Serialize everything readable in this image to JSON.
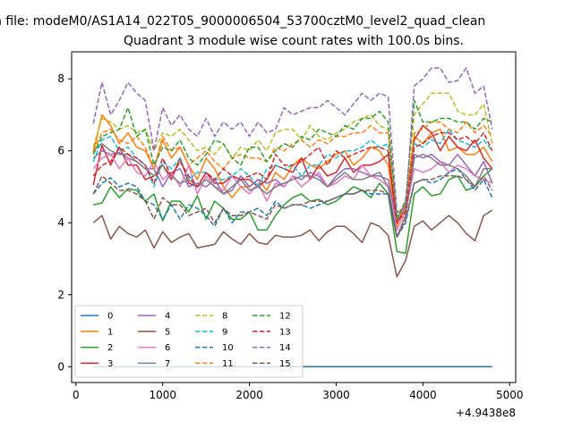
{
  "figure": {
    "suptitle": "n file: modeM0/AS1A14_022T05_9000006504_53700cztM0_level2_quad_clean",
    "x_offset_label": "+4.9438e8"
  },
  "chart_data": {
    "type": "line",
    "title": "Quadrant 3 module wise count rates with 100.0s bins.",
    "xlabel": "",
    "ylabel": "",
    "xlim": [
      -50,
      5070
    ],
    "ylim": [
      -0.44,
      8.75
    ],
    "xticks": [
      0,
      1000,
      2000,
      3000,
      4000,
      5000
    ],
    "yticks": [
      0,
      2,
      4,
      6,
      8
    ],
    "grid": false,
    "legend_position": "lower-left",
    "legend_columns": 4,
    "x": [
      200,
      300,
      400,
      500,
      600,
      700,
      800,
      900,
      1000,
      1100,
      1200,
      1300,
      1400,
      1500,
      1600,
      1700,
      1800,
      1900,
      2000,
      2100,
      2200,
      2300,
      2400,
      2500,
      2600,
      2700,
      2800,
      2900,
      3000,
      3100,
      3200,
      3300,
      3400,
      3500,
      3600,
      3700,
      3800,
      3900,
      4000,
      4100,
      4200,
      4300,
      4400,
      4500,
      4600,
      4700,
      4800
    ],
    "series": [
      {
        "name": "0",
        "color": "#1f77b4",
        "dash": "solid",
        "values": [
          0,
          0,
          0,
          0,
          0,
          0,
          0,
          0,
          0,
          0,
          0,
          0,
          0,
          0,
          0,
          0,
          0,
          0,
          0,
          0,
          0,
          0,
          0,
          0,
          0,
          0,
          0,
          0,
          0,
          0,
          0,
          0,
          0,
          0,
          0,
          0,
          0,
          0,
          0,
          0,
          0,
          0,
          0,
          0,
          0,
          0,
          0
        ]
      },
      {
        "name": "1",
        "color": "#ff7f0e",
        "dash": "solid",
        "values": [
          5.95,
          7.0,
          6.7,
          6.2,
          6.5,
          6.1,
          6.0,
          5.5,
          6.3,
          5.8,
          6.1,
          5.6,
          5.2,
          5.8,
          5.5,
          5.0,
          4.7,
          5.0,
          5.0,
          5.2,
          4.9,
          5.4,
          5.2,
          5.6,
          5.8,
          5.6,
          5.5,
          5.7,
          5.9,
          6.0,
          5.6,
          5.8,
          6.1,
          6.0,
          5.6,
          3.9,
          4.5,
          6.4,
          6.2,
          6.5,
          6.6,
          6.0,
          6.1,
          5.9,
          5.9,
          6.1,
          5.7
        ]
      },
      {
        "name": "2",
        "color": "#2ca02c",
        "dash": "solid",
        "values": [
          4.5,
          4.55,
          5.0,
          4.7,
          4.95,
          4.9,
          4.6,
          4.8,
          4.05,
          4.6,
          4.6,
          4.3,
          4.75,
          4.1,
          4.6,
          4.4,
          4.1,
          4.1,
          4.3,
          3.8,
          3.8,
          4.2,
          4.5,
          4.7,
          4.8,
          4.6,
          4.65,
          4.5,
          4.6,
          4.8,
          5.0,
          4.9,
          4.7,
          5.1,
          4.8,
          3.2,
          3.15,
          4.8,
          5.0,
          4.75,
          4.8,
          5.2,
          5.3,
          4.9,
          5.0,
          5.3,
          5.5
        ]
      },
      {
        "name": "3",
        "color": "#d62728",
        "dash": "solid",
        "values": [
          5.05,
          6.15,
          5.6,
          6.1,
          5.6,
          5.6,
          5.2,
          5.3,
          5.6,
          5.2,
          5.8,
          5.1,
          5.0,
          5.4,
          5.1,
          5.1,
          5.3,
          5.2,
          5.2,
          5.0,
          5.2,
          5.6,
          5.5,
          5.4,
          5.8,
          5.2,
          5.6,
          5.3,
          5.4,
          5.8,
          5.4,
          5.6,
          5.6,
          5.7,
          5.9,
          4.0,
          4.4,
          6.3,
          6.7,
          6.5,
          6.0,
          6.4,
          6.1,
          6.0,
          6.3,
          5.8,
          5.5
        ]
      },
      {
        "name": "4",
        "color": "#9467bd",
        "dash": "solid",
        "values": [
          5.8,
          6.0,
          5.9,
          5.95,
          5.8,
          5.7,
          5.5,
          5.5,
          5.0,
          5.4,
          5.5,
          5.0,
          5.1,
          5.0,
          5.2,
          4.8,
          4.9,
          5.3,
          5.0,
          5.2,
          5.1,
          5.2,
          5.0,
          5.3,
          5.2,
          5.4,
          5.3,
          5.0,
          5.3,
          5.5,
          5.5,
          5.4,
          5.3,
          5.3,
          5.2,
          4.0,
          4.6,
          5.9,
          5.8,
          5.9,
          5.7,
          5.6,
          5.9,
          5.6,
          5.3,
          5.7,
          5.1
        ]
      },
      {
        "name": "5",
        "color": "#8c564b",
        "dash": "solid",
        "values": [
          4.0,
          4.2,
          3.55,
          3.9,
          3.7,
          3.6,
          3.8,
          3.3,
          3.75,
          3.45,
          3.6,
          3.7,
          3.3,
          3.35,
          3.4,
          3.75,
          3.55,
          3.4,
          3.7,
          3.45,
          3.4,
          3.65,
          3.6,
          3.6,
          3.65,
          3.8,
          3.5,
          3.75,
          3.9,
          3.9,
          3.7,
          3.45,
          4.0,
          3.9,
          3.65,
          2.5,
          2.95,
          3.9,
          4.05,
          3.8,
          4.0,
          4.2,
          4.0,
          3.7,
          3.5,
          4.2,
          4.35
        ]
      },
      {
        "name": "6",
        "color": "#e377c2",
        "dash": "solid",
        "values": [
          5.5,
          5.8,
          5.9,
          5.5,
          5.8,
          5.4,
          5.3,
          5.7,
          5.2,
          5.4,
          5.0,
          5.6,
          4.8,
          5.3,
          5.0,
          4.9,
          5.3,
          5.0,
          4.8,
          5.1,
          4.6,
          5.1,
          5.0,
          5.3,
          5.0,
          5.2,
          5.4,
          5.0,
          5.1,
          5.3,
          5.2,
          5.6,
          5.3,
          5.2,
          5.0,
          3.8,
          4.3,
          5.5,
          5.4,
          5.5,
          5.7,
          5.4,
          5.6,
          5.5,
          5.3,
          5.2,
          5.1
        ]
      },
      {
        "name": "7",
        "color": "#7f7f7f",
        "dash": "solid",
        "values": [
          6.0,
          6.2,
          6.0,
          5.9,
          5.9,
          5.7,
          5.5,
          5.3,
          5.6,
          5.3,
          5.1,
          5.2,
          5.0,
          5.2,
          5.0,
          4.8,
          5.0,
          5.2,
          4.9,
          5.0,
          4.8,
          5.0,
          5.1,
          5.2,
          5.3,
          5.3,
          5.2,
          5.0,
          5.2,
          5.4,
          5.2,
          5.2,
          5.3,
          5.4,
          5.0,
          3.6,
          4.2,
          5.8,
          5.9,
          5.8,
          5.6,
          5.6,
          5.5,
          5.3,
          5.0,
          5.5,
          5.5
        ]
      },
      {
        "name": "8",
        "color": "#bcbd22",
        "dash": "dashed",
        "values": [
          6.1,
          6.9,
          6.8,
          6.6,
          6.7,
          6.5,
          6.6,
          6.0,
          6.5,
          6.4,
          6.6,
          6.3,
          6.0,
          6.1,
          5.9,
          6.2,
          5.8,
          6.1,
          6.0,
          6.3,
          6.0,
          6.5,
          6.6,
          6.6,
          6.3,
          6.7,
          6.4,
          6.3,
          6.5,
          6.6,
          6.8,
          6.9,
          7.0,
          6.7,
          6.6,
          4.2,
          4.6,
          7.0,
          7.3,
          7.6,
          7.6,
          7.6,
          7.1,
          7.0,
          7.0,
          7.3,
          6.2
        ]
      },
      {
        "name": "9",
        "color": "#17becf",
        "dash": "dashed",
        "values": [
          5.7,
          6.3,
          6.4,
          6.0,
          6.1,
          5.8,
          5.6,
          5.0,
          5.7,
          5.5,
          5.8,
          5.2,
          5.4,
          5.4,
          5.2,
          5.2,
          5.3,
          5.5,
          5.3,
          5.0,
          5.5,
          5.6,
          5.5,
          5.6,
          5.3,
          5.6,
          5.6,
          5.9,
          5.8,
          6.0,
          6.0,
          6.1,
          6.3,
          6.1,
          6.2,
          4.2,
          4.3,
          6.2,
          6.1,
          6.3,
          6.2,
          6.6,
          6.3,
          6.2,
          6.1,
          6.3,
          6.0
        ]
      },
      {
        "name": "10",
        "color": "#1f77b4",
        "dash": "dashed",
        "values": [
          4.8,
          5.1,
          5.25,
          5.0,
          5.1,
          5.0,
          4.6,
          4.5,
          4.1,
          4.5,
          4.1,
          4.5,
          4.4,
          4.2,
          3.9,
          4.4,
          4.0,
          4.3,
          4.3,
          4.4,
          4.2,
          4.6,
          4.4,
          4.5,
          4.5,
          4.4,
          4.5,
          4.6,
          4.7,
          4.8,
          4.8,
          4.9,
          4.8,
          4.8,
          4.8,
          3.6,
          4.0,
          5.1,
          5.2,
          5.1,
          5.2,
          5.4,
          5.5,
          5.2,
          4.9,
          5.2,
          4.7
        ]
      },
      {
        "name": "11",
        "color": "#ff7f0e",
        "dash": "dashed",
        "values": [
          6.0,
          6.5,
          6.6,
          6.3,
          6.2,
          6.4,
          6.1,
          5.5,
          6.4,
          6.0,
          6.1,
          5.6,
          5.8,
          6.0,
          5.7,
          5.5,
          5.8,
          5.9,
          5.8,
          5.8,
          5.7,
          6.1,
          6.0,
          6.2,
          6.3,
          6.1,
          6.3,
          6.2,
          6.4,
          6.4,
          6.5,
          6.5,
          6.7,
          6.5,
          6.5,
          4.1,
          4.4,
          6.5,
          6.6,
          6.8,
          6.8,
          6.6,
          6.5,
          6.8,
          6.5,
          6.7,
          6.4
        ]
      },
      {
        "name": "12",
        "color": "#2ca02c",
        "dash": "dashed",
        "values": [
          5.9,
          6.4,
          6.5,
          6.6,
          7.2,
          6.4,
          6.6,
          5.6,
          6.1,
          6.0,
          6.3,
          5.8,
          5.6,
          5.9,
          6.3,
          6.2,
          5.8,
          5.6,
          6.1,
          6.1,
          5.7,
          6.0,
          6.2,
          6.1,
          6.4,
          6.3,
          6.6,
          6.5,
          6.4,
          6.7,
          6.6,
          6.9,
          6.9,
          7.1,
          6.8,
          4.1,
          4.6,
          7.4,
          6.8,
          6.8,
          6.9,
          6.9,
          6.8,
          6.8,
          6.6,
          6.9,
          6.8
        ]
      },
      {
        "name": "13",
        "color": "#d62728",
        "dash": "dashed",
        "values": [
          5.3,
          5.6,
          5.7,
          6.1,
          5.9,
          5.8,
          5.6,
          5.1,
          5.8,
          5.3,
          5.7,
          5.3,
          5.0,
          5.4,
          5.2,
          5.5,
          5.3,
          5.2,
          5.3,
          5.4,
          5.2,
          5.9,
          5.6,
          5.6,
          5.7,
          5.9,
          6.1,
          5.6,
          6.0,
          5.8,
          5.9,
          6.0,
          6.1,
          6.1,
          6.0,
          4.0,
          4.3,
          6.1,
          6.2,
          6.4,
          6.5,
          6.5,
          6.3,
          6.4,
          6.2,
          6.5,
          6.0
        ]
      },
      {
        "name": "14",
        "color": "#9467bd",
        "dash": "dashed",
        "values": [
          6.75,
          7.9,
          7.0,
          7.4,
          7.9,
          7.6,
          7.4,
          6.0,
          7.2,
          6.7,
          7.0,
          6.6,
          6.4,
          6.9,
          6.4,
          6.8,
          6.6,
          6.8,
          6.4,
          6.8,
          6.5,
          6.6,
          7.2,
          7.0,
          7.1,
          7.2,
          7.2,
          7.4,
          7.2,
          7.0,
          7.3,
          7.6,
          7.4,
          7.6,
          7.5,
          4.3,
          4.4,
          7.8,
          8.0,
          8.3,
          8.3,
          7.9,
          7.95,
          8.3,
          7.6,
          7.8,
          6.6
        ]
      },
      {
        "name": "15",
        "color": "#8c564b",
        "dash": "dashed",
        "values": [
          4.8,
          5.3,
          5.1,
          4.9,
          4.9,
          4.8,
          4.6,
          4.1,
          4.7,
          4.5,
          4.5,
          4.2,
          4.3,
          4.4,
          4.0,
          4.4,
          4.2,
          4.2,
          4.3,
          4.2,
          4.1,
          4.5,
          4.4,
          4.5,
          4.5,
          4.6,
          4.6,
          4.6,
          4.7,
          4.8,
          4.8,
          4.9,
          4.9,
          4.9,
          4.8,
          3.6,
          4.1,
          5.1,
          5.2,
          5.2,
          5.3,
          5.3,
          5.3,
          5.2,
          5.0,
          5.3,
          4.9
        ]
      }
    ]
  }
}
